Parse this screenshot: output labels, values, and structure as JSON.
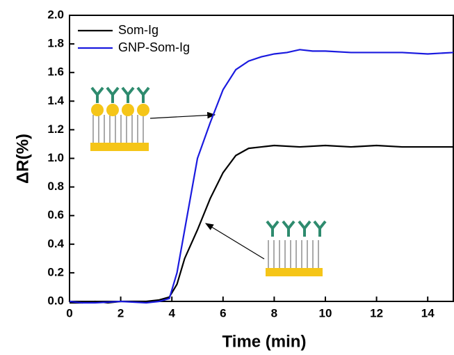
{
  "chart_data": {
    "type": "line",
    "x_label": "Time (min)",
    "y_label": "ΔR(%)",
    "xlim": [
      0,
      15
    ],
    "xticks": [
      0,
      2,
      4,
      6,
      8,
      10,
      12,
      14
    ],
    "ylim": [
      0,
      2
    ],
    "yticks": [
      {
        "value": 0,
        "label": "0.0"
      },
      0.2,
      0.4,
      0.6,
      0.8,
      {
        "value": 1,
        "label": "1.0"
      },
      1.2,
      1.4,
      1.6,
      1.8,
      {
        "value": 2,
        "label": "2.0"
      }
    ],
    "series": [
      {
        "name": "Som-Ig",
        "color": "#000000",
        "x": [
          0,
          0.5,
          1,
          1.5,
          2,
          2.5,
          3,
          3.5,
          3.9,
          4.2,
          4.5,
          5,
          5.5,
          6,
          6.5,
          7,
          7.5,
          8,
          9,
          10,
          11,
          12,
          13,
          14,
          15
        ],
        "values": [
          -0.01,
          -0.01,
          0,
          -0.01,
          0,
          0,
          0,
          0.01,
          0.03,
          0.12,
          0.3,
          0.5,
          0.72,
          0.9,
          1.02,
          1.07,
          1.08,
          1.09,
          1.08,
          1.09,
          1.08,
          1.09,
          1.08,
          1.08,
          1.08
        ]
      },
      {
        "name": "GNP-Som-Ig",
        "color": "#1a1adf",
        "x": [
          0,
          0.5,
          1,
          2,
          3,
          3.5,
          3.9,
          4.2,
          4.5,
          5,
          5.5,
          6,
          6.5,
          7,
          7.5,
          8,
          8.5,
          9,
          9.5,
          10,
          11,
          12,
          13,
          14,
          15
        ],
        "values": [
          0,
          -0.01,
          -0.01,
          0,
          -0.01,
          0,
          0.02,
          0.2,
          0.5,
          1.0,
          1.25,
          1.48,
          1.62,
          1.68,
          1.71,
          1.73,
          1.74,
          1.76,
          1.75,
          1.75,
          1.74,
          1.74,
          1.74,
          1.73,
          1.74
        ]
      }
    ]
  }
}
